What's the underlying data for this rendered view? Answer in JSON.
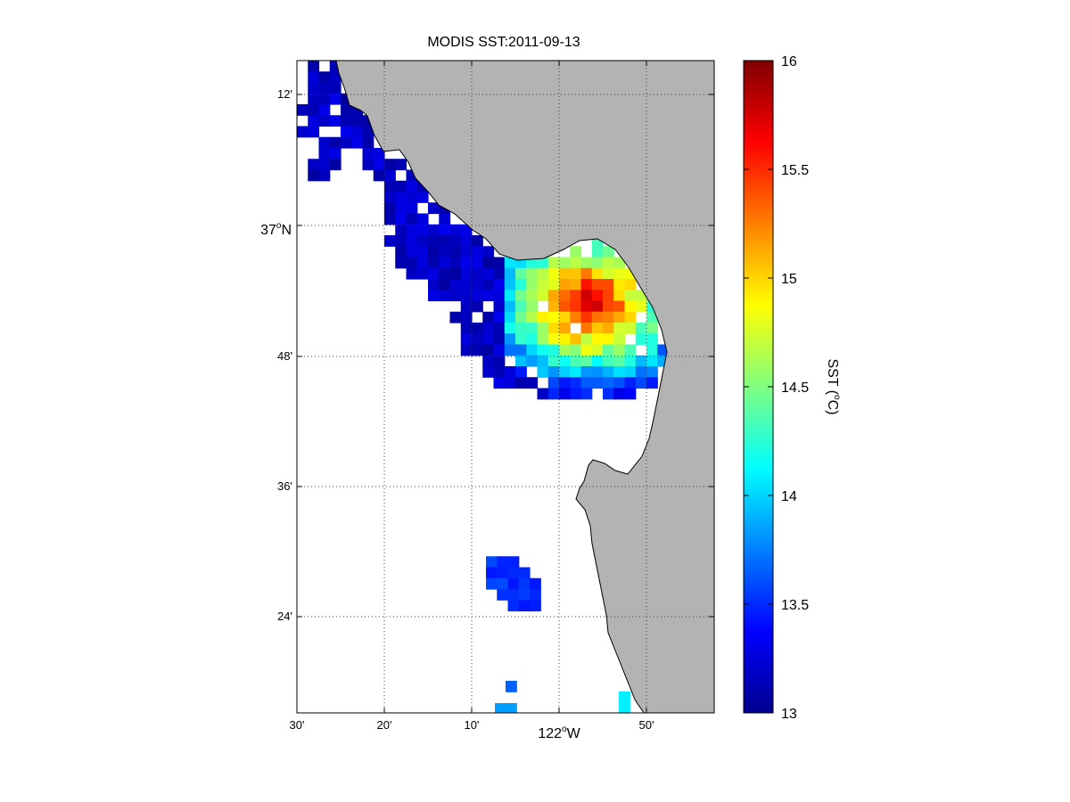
{
  "title": "MODIS SST:2011-09-13",
  "colorbar": {
    "label": "SST (",
    "label_sup": "o",
    "label_end": "C)",
    "min": 13,
    "max": 16,
    "ticks": [
      "13",
      "13.5",
      "14",
      "14.5",
      "15",
      "15.5",
      "16"
    ]
  },
  "lon_ticks": [
    {
      "text": "30'",
      "sup": "",
      "end": ""
    },
    {
      "text": "20'",
      "sup": "",
      "end": ""
    },
    {
      "text": "10'",
      "sup": "",
      "end": ""
    },
    {
      "text": "122",
      "sup": "o",
      "end": "W"
    },
    {
      "text": "50'",
      "sup": "",
      "end": ""
    }
  ],
  "lat_ticks": [
    {
      "text": "12'",
      "sup": "",
      "end": ""
    },
    {
      "text": "37",
      "sup": "o",
      "end": "N"
    },
    {
      "text": "48'",
      "sup": "",
      "end": ""
    },
    {
      "text": "36'",
      "sup": "",
      "end": ""
    },
    {
      "text": "24'",
      "sup": "",
      "end": ""
    }
  ],
  "colors": {
    "land": "#b3b3b3",
    "grid": "#404040"
  }
}
